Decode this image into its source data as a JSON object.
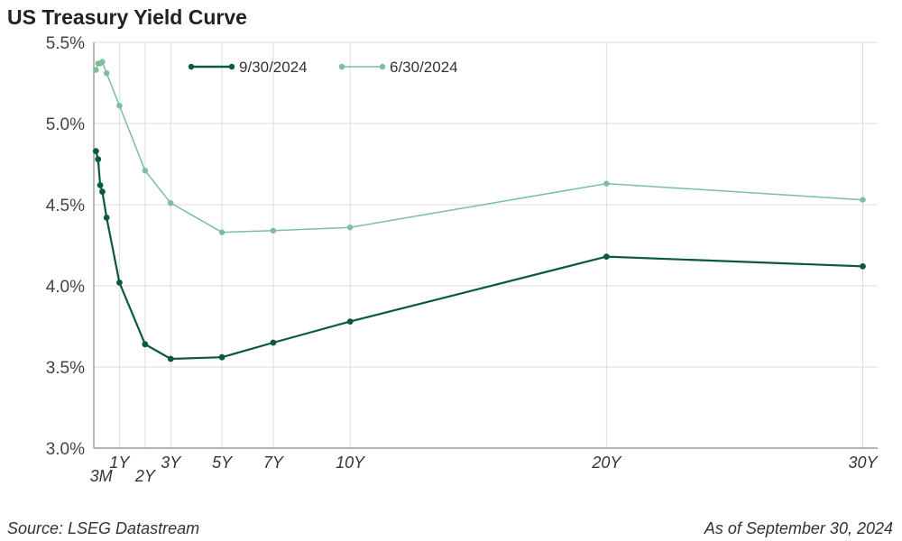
{
  "header": {
    "title": "US Treasury Yield Curve"
  },
  "footer": {
    "source": "Source: LSEG Datastream",
    "as_of": "As of September 30, 2024"
  },
  "chart_data": {
    "type": "line",
    "title": "US Treasury Yield Curve",
    "xlabel": "",
    "ylabel": "",
    "ylim": [
      3.0,
      5.5
    ],
    "y_ticks": [
      "3.0%",
      "3.5%",
      "4.0%",
      "4.5%",
      "5.0%",
      "5.5%"
    ],
    "grid": true,
    "legend_position": "top",
    "x_maturities_years": [
      0.0833,
      0.1667,
      0.25,
      0.3333,
      0.5,
      1,
      2,
      3,
      5,
      7,
      10,
      20,
      30
    ],
    "x_tick_labels": [
      {
        "label": "3M",
        "x": 0.25
      },
      {
        "label": "1Y",
        "x": 1
      },
      {
        "label": "2Y",
        "x": 2
      },
      {
        "label": "3Y",
        "x": 3
      },
      {
        "label": "5Y",
        "x": 5
      },
      {
        "label": "7Y",
        "x": 7
      },
      {
        "label": "10Y",
        "x": 10
      },
      {
        "label": "20Y",
        "x": 20
      },
      {
        "label": "30Y",
        "x": 30
      }
    ],
    "series": [
      {
        "name": "9/30/2024",
        "color": "#0b5a3c",
        "values": [
          4.83,
          4.78,
          4.62,
          4.58,
          4.42,
          4.02,
          3.64,
          3.55,
          3.56,
          3.65,
          3.78,
          4.18,
          4.12
        ]
      },
      {
        "name": "6/30/2024",
        "color": "#7bbf9c",
        "values": [
          5.33,
          5.37,
          5.37,
          5.38,
          5.31,
          5.11,
          4.71,
          4.51,
          4.33,
          4.34,
          4.36,
          4.63,
          4.53
        ]
      }
    ]
  }
}
